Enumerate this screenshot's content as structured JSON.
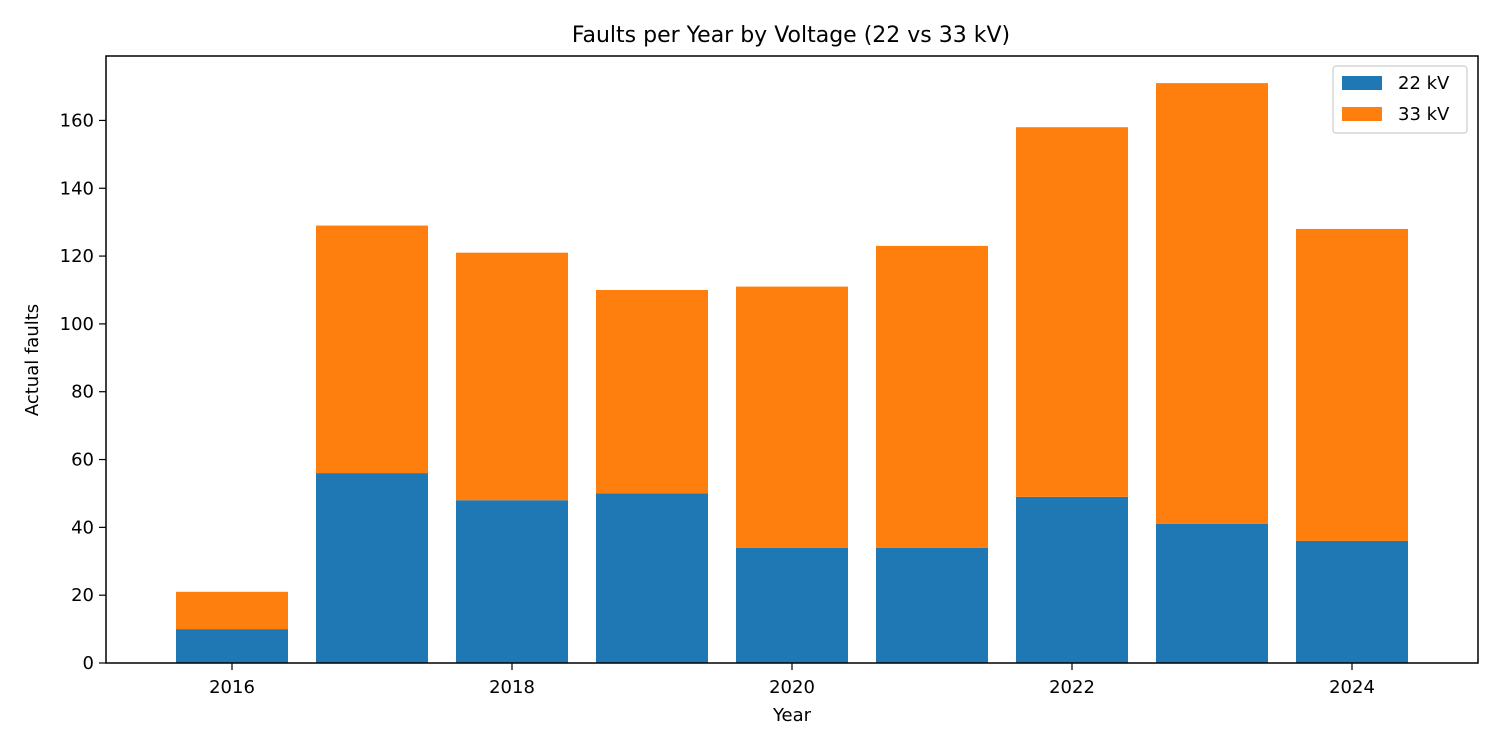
{
  "chart_data": {
    "type": "bar",
    "stacked": true,
    "title": "Faults per Year by Voltage (22 vs 33 kV)",
    "xlabel": "Year",
    "ylabel": "Actual faults",
    "categories": [
      2016,
      2017,
      2018,
      2019,
      2020,
      2021,
      2022,
      2023,
      2024
    ],
    "x_ticks": [
      "2016",
      "2018",
      "2020",
      "2022",
      "2024"
    ],
    "y_ticks": [
      "0",
      "20",
      "40",
      "60",
      "80",
      "100",
      "120",
      "140",
      "160"
    ],
    "ylim": [
      0,
      179
    ],
    "xlim": [
      2015.1,
      2024.9
    ],
    "grid": false,
    "legend_position": "top-right",
    "series": [
      {
        "name": "22 kV",
        "color": "#1f77b4",
        "values": [
          10,
          56,
          48,
          50,
          34,
          34,
          49,
          41,
          36
        ]
      },
      {
        "name": "33 kV",
        "color": "#ff7f0e",
        "values": [
          11,
          73,
          73,
          60,
          77,
          89,
          109,
          130,
          92
        ]
      }
    ]
  }
}
